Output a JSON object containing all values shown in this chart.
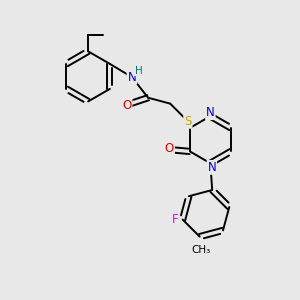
{
  "bg_color": "#e8e8e8",
  "bond_color": "#000000",
  "bond_width": 1.4,
  "atom_colors": {
    "N": "#0000dd",
    "O": "#dd0000",
    "S": "#bbaa00",
    "F": "#ee00ee",
    "H": "#007777",
    "C": "#000000"
  },
  "font_size_atom": 8.5,
  "ethyl_font": 7.0,
  "methyl_font": 7.5
}
